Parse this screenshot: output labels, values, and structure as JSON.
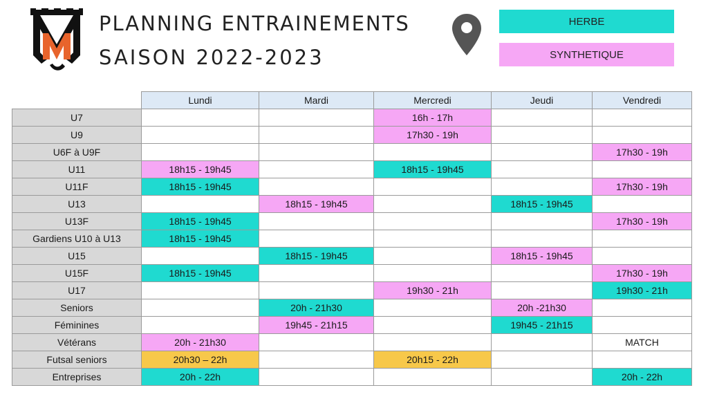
{
  "header": {
    "title_line1": "PLANNING ENTRAINEMENTS",
    "title_line2": "SAISON 2022-2023"
  },
  "legend": {
    "herbe": "HERBE",
    "synthetique": "SYNTHETIQUE"
  },
  "colors": {
    "herbe": "#1fdad0",
    "synthetique": "#f6a7f5",
    "futsal": "#f7c84a",
    "day_header": "#dde9f6",
    "category": "#d8d8d8",
    "logo_orange": "#e8642c"
  },
  "icons": {
    "location": "map-pin-icon",
    "logo": "club-crest-logo"
  },
  "days": [
    "Lundi",
    "Mardi",
    "Mercredi",
    "Jeudi",
    "Vendredi"
  ],
  "rows": [
    {
      "cat": "U7",
      "cells": [
        {
          "t": "",
          "k": "plain"
        },
        {
          "t": "",
          "k": "plain"
        },
        {
          "t": "16h - 17h",
          "k": "synth"
        },
        {
          "t": "",
          "k": "plain"
        },
        {
          "t": "",
          "k": "plain"
        }
      ]
    },
    {
      "cat": "U9",
      "cells": [
        {
          "t": "",
          "k": "plain"
        },
        {
          "t": "",
          "k": "plain"
        },
        {
          "t": "17h30 - 19h",
          "k": "synth"
        },
        {
          "t": "",
          "k": "plain"
        },
        {
          "t": "",
          "k": "plain"
        }
      ]
    },
    {
      "cat": "U6F à U9F",
      "cells": [
        {
          "t": "",
          "k": "plain"
        },
        {
          "t": "",
          "k": "plain"
        },
        {
          "t": "",
          "k": "plain"
        },
        {
          "t": "",
          "k": "plain"
        },
        {
          "t": "17h30 - 19h",
          "k": "synth"
        }
      ]
    },
    {
      "cat": "U11",
      "cells": [
        {
          "t": "18h15 - 19h45",
          "k": "synth"
        },
        {
          "t": "",
          "k": "plain"
        },
        {
          "t": "18h15 - 19h45",
          "k": "herbe"
        },
        {
          "t": "",
          "k": "plain"
        },
        {
          "t": "",
          "k": "plain"
        }
      ]
    },
    {
      "cat": "U11F",
      "cells": [
        {
          "t": "18h15 - 19h45",
          "k": "herbe"
        },
        {
          "t": "",
          "k": "plain"
        },
        {
          "t": "",
          "k": "plain"
        },
        {
          "t": "",
          "k": "plain"
        },
        {
          "t": "17h30 - 19h",
          "k": "synth"
        }
      ]
    },
    {
      "cat": "U13",
      "cells": [
        {
          "t": "",
          "k": "plain"
        },
        {
          "t": "18h15 - 19h45",
          "k": "synth"
        },
        {
          "t": "",
          "k": "plain"
        },
        {
          "t": "18h15 - 19h45",
          "k": "herbe"
        },
        {
          "t": "",
          "k": "plain"
        }
      ]
    },
    {
      "cat": "U13F",
      "cells": [
        {
          "t": "18h15 - 19h45",
          "k": "herbe"
        },
        {
          "t": "",
          "k": "plain"
        },
        {
          "t": "",
          "k": "plain"
        },
        {
          "t": "",
          "k": "plain"
        },
        {
          "t": "17h30 - 19h",
          "k": "synth"
        }
      ]
    },
    {
      "cat": "Gardiens U10 à U13",
      "cells": [
        {
          "t": "18h15 - 19h45",
          "k": "herbe"
        },
        {
          "t": "",
          "k": "plain"
        },
        {
          "t": "",
          "k": "plain"
        },
        {
          "t": "",
          "k": "plain"
        },
        {
          "t": "",
          "k": "plain"
        }
      ]
    },
    {
      "cat": "U15",
      "cells": [
        {
          "t": "",
          "k": "plain"
        },
        {
          "t": "18h15 - 19h45",
          "k": "herbe"
        },
        {
          "t": "",
          "k": "plain"
        },
        {
          "t": "18h15 - 19h45",
          "k": "synth"
        },
        {
          "t": "",
          "k": "plain"
        }
      ]
    },
    {
      "cat": "U15F",
      "cells": [
        {
          "t": "18h15 - 19h45",
          "k": "herbe"
        },
        {
          "t": "",
          "k": "plain"
        },
        {
          "t": "",
          "k": "plain"
        },
        {
          "t": "",
          "k": "plain"
        },
        {
          "t": "17h30 - 19h",
          "k": "synth"
        }
      ]
    },
    {
      "cat": "U17",
      "cells": [
        {
          "t": "",
          "k": "plain"
        },
        {
          "t": "",
          "k": "plain"
        },
        {
          "t": "19h30 - 21h",
          "k": "synth"
        },
        {
          "t": "",
          "k": "plain"
        },
        {
          "t": "19h30 - 21h",
          "k": "herbe"
        }
      ]
    },
    {
      "cat": "Seniors",
      "cells": [
        {
          "t": "",
          "k": "plain"
        },
        {
          "t": "20h - 21h30",
          "k": "herbe"
        },
        {
          "t": "",
          "k": "plain"
        },
        {
          "t": "20h -21h30",
          "k": "synth"
        },
        {
          "t": "",
          "k": "plain"
        }
      ]
    },
    {
      "cat": "Féminines",
      "cells": [
        {
          "t": "",
          "k": "plain"
        },
        {
          "t": "19h45 - 21h15",
          "k": "synth"
        },
        {
          "t": "",
          "k": "plain"
        },
        {
          "t": "19h45 - 21h15",
          "k": "herbe"
        },
        {
          "t": "",
          "k": "plain"
        }
      ]
    },
    {
      "cat": "Vétérans",
      "cells": [
        {
          "t": "20h - 21h30",
          "k": "synth"
        },
        {
          "t": "",
          "k": "plain"
        },
        {
          "t": "",
          "k": "plain"
        },
        {
          "t": "",
          "k": "plain"
        },
        {
          "t": "MATCH",
          "k": "plain"
        }
      ]
    },
    {
      "cat": "Futsal seniors",
      "cells": [
        {
          "t": "20h30 – 22h",
          "k": "futsal"
        },
        {
          "t": "",
          "k": "plain"
        },
        {
          "t": "20h15 - 22h",
          "k": "futsal"
        },
        {
          "t": "",
          "k": "plain"
        },
        {
          "t": "",
          "k": "plain"
        }
      ]
    },
    {
      "cat": "Entreprises",
      "cells": [
        {
          "t": "20h - 22h",
          "k": "herbe"
        },
        {
          "t": "",
          "k": "plain"
        },
        {
          "t": "",
          "k": "plain"
        },
        {
          "t": "",
          "k": "plain"
        },
        {
          "t": "20h - 22h",
          "k": "herbe"
        }
      ]
    }
  ]
}
